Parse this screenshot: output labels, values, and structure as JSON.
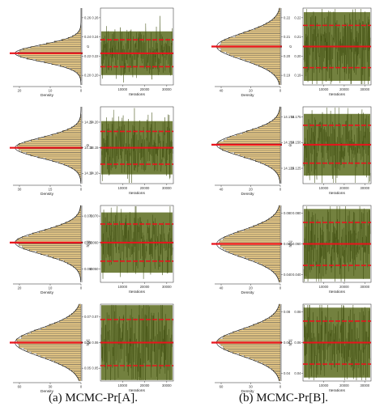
{
  "captions": [
    "(a) MCMC-Pr[A].",
    "(b) MCMC-Pr[B]."
  ],
  "colors": {
    "hist_fill": "#f6d58c",
    "hist_edge": "#3a3a3a",
    "trace": "#5a6b1d",
    "red": "#e8141c",
    "axis": "#222222"
  },
  "chart_data": [
    {
      "panel": "a",
      "row": 1,
      "type": "histogram+trace",
      "density_label": "Density",
      "iter_label": "Iterations",
      "param_label": "σ",
      "density_ticks": [
        "20",
        "10",
        "0"
      ],
      "iter_ticks": [
        "10000",
        "20000",
        "30000"
      ],
      "param_ticks": [
        "0.26",
        "0.24",
        "0.22",
        "0.20"
      ],
      "param_lim": [
        0.19,
        0.27
      ],
      "center": 0.223,
      "lower": 0.209,
      "upper": 0.237
    },
    {
      "panel": "a",
      "row": 2,
      "type": "histogram+trace",
      "density_label": "Density",
      "iter_label": "Iterations",
      "param_label": "θ",
      "density_ticks": [
        "30",
        "15",
        "0"
      ],
      "iter_ticks": [
        "10000",
        "20000",
        "30000"
      ],
      "param_ticks": [
        "14.20",
        "14.15",
        "14.10"
      ],
      "param_lim": [
        14.08,
        14.23
      ],
      "center": 14.15,
      "lower": 14.118,
      "upper": 14.182
    },
    {
      "panel": "a",
      "row": 3,
      "type": "histogram+trace",
      "density_label": "Density",
      "iter_label": "Iterations",
      "param_label": "h[1]",
      "density_ticks": [
        "20",
        "10",
        "0"
      ],
      "iter_ticks": [
        "10000",
        "20000",
        "30000"
      ],
      "param_ticks": [
        "0.070",
        "0.060",
        "0.050"
      ],
      "param_lim": [
        0.045,
        0.074
      ],
      "center": 0.06,
      "lower": 0.053,
      "upper": 0.067
    },
    {
      "panel": "a",
      "row": 4,
      "type": "histogram+trace",
      "density_label": "Density",
      "iter_label": "Iterations",
      "param_label": "h[2]",
      "density_ticks": [
        "60",
        "30",
        "0"
      ],
      "iter_ticks": [
        "10000",
        "20000",
        "30000"
      ],
      "param_ticks": [
        "0.07",
        "0.06",
        "0.05"
      ],
      "param_lim": [
        0.045,
        0.075
      ],
      "center": 0.06,
      "lower": 0.051,
      "upper": 0.069
    },
    {
      "panel": "b",
      "row": 1,
      "type": "histogram+trace",
      "density_label": "Density",
      "iter_label": "Iterations",
      "param_label": "σ",
      "density_ticks": [
        "40",
        "20",
        "0"
      ],
      "iter_ticks": [
        "10000",
        "20000",
        "30000"
      ],
      "param_ticks": [
        "0.22",
        "0.21",
        "0.20",
        "0.19"
      ],
      "param_lim": [
        0.185,
        0.225
      ],
      "center": 0.205,
      "lower": 0.194,
      "upper": 0.216
    },
    {
      "panel": "b",
      "row": 2,
      "type": "histogram+trace",
      "density_label": "Density",
      "iter_label": "Iterations",
      "param_label": "θ",
      "density_ticks": [
        "40",
        "20",
        "0"
      ],
      "iter_ticks": [
        "10000",
        "20000",
        "30000"
      ],
      "param_ticks": [
        "14.175",
        "14.150",
        "14.125"
      ],
      "param_lim": [
        14.11,
        14.185
      ],
      "center": 14.148,
      "lower": 14.13,
      "upper": 14.167
    },
    {
      "panel": "b",
      "row": 3,
      "type": "histogram+trace",
      "density_label": "Density",
      "iter_label": "Iterations",
      "param_label": "h[1]",
      "density_ticks": [
        "40",
        "20",
        "0"
      ],
      "iter_ticks": [
        "10000",
        "20000",
        "30000"
      ],
      "param_ticks": [
        "0.080",
        "0.060",
        "0.040"
      ],
      "param_lim": [
        0.035,
        0.085
      ],
      "center": 0.06,
      "lower": 0.046,
      "upper": 0.074
    },
    {
      "panel": "b",
      "row": 4,
      "type": "histogram+trace",
      "density_label": "Density",
      "iter_label": "Iterations",
      "param_label": "h[2]",
      "density_ticks": [
        "60",
        "30",
        "0"
      ],
      "iter_ticks": [
        "10000",
        "20000",
        "30000"
      ],
      "param_ticks": [
        "0.08",
        "0.06",
        "0.04"
      ],
      "param_lim": [
        0.035,
        0.085
      ],
      "center": 0.06,
      "lower": 0.046,
      "upper": 0.074
    }
  ]
}
